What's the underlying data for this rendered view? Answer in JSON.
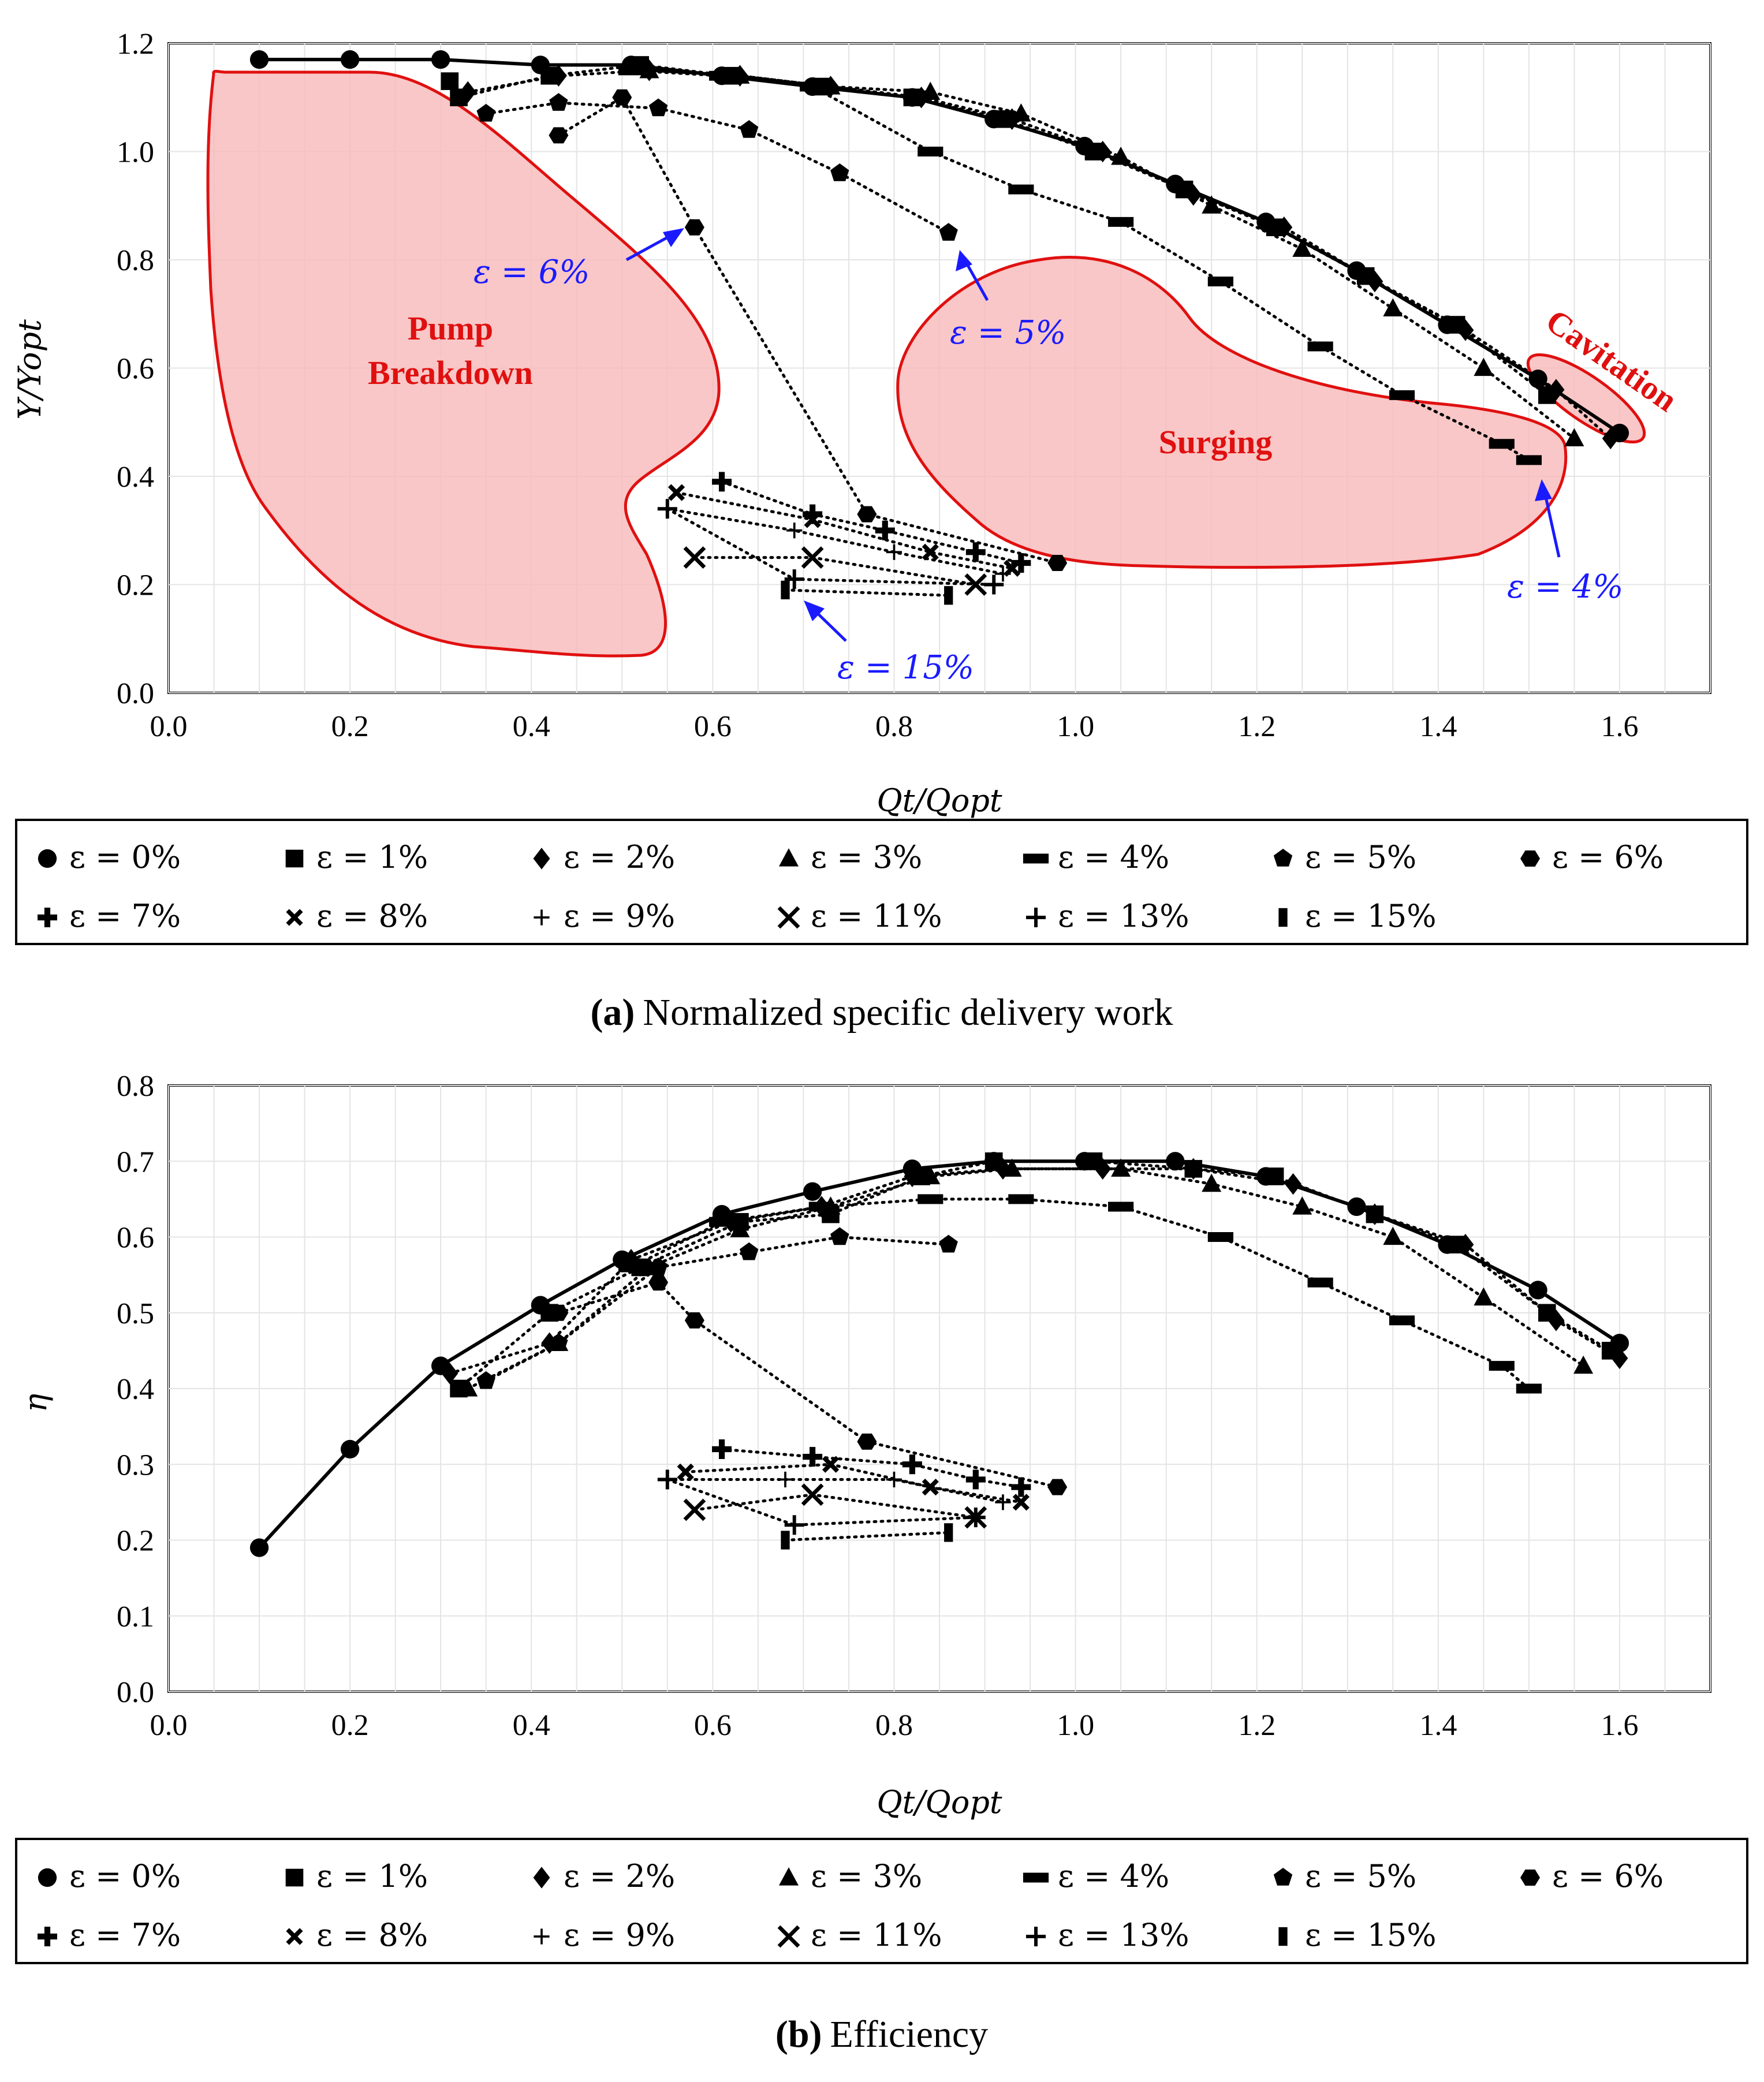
{
  "chart_data": [
    {
      "type": "scatter",
      "panel_id": "a",
      "caption_prefix": "(a)",
      "caption": "Normalized specific delivery work",
      "xlabel": "Qt/Qopt",
      "ylabel": "Y/Yopt",
      "xlim": [
        0.0,
        1.7
      ],
      "ylim": [
        0.0,
        1.2
      ],
      "xticks": [
        "0.0",
        "0.2",
        "0.4",
        "0.6",
        "0.8",
        "1.0",
        "1.2",
        "1.4",
        "1.6"
      ],
      "yticks": [
        "0.0",
        "0.2",
        "0.4",
        "0.6",
        "0.8",
        "1.0",
        "1.2"
      ],
      "grid": true,
      "regions": [
        {
          "name": "Pump Breakdown",
          "label_lines": [
            "Pump",
            "Breakdown"
          ]
        },
        {
          "name": "Surging",
          "label_lines": [
            "Surging"
          ]
        },
        {
          "name": "Cavitation",
          "label_lines": [
            "Cavitation"
          ]
        }
      ],
      "annotations": [
        "ε = 6%",
        "ε = 5%",
        "ε = 4%",
        "ε = 15%"
      ],
      "series": [
        {
          "name": "ε = 0%",
          "marker": "circle",
          "x": [
            0.1,
            0.2,
            0.3,
            0.41,
            0.51,
            0.61,
            0.71,
            0.82,
            0.91,
            1.01,
            1.11,
            1.21,
            1.31,
            1.41,
            1.51,
            1.6
          ],
          "y": [
            1.17,
            1.17,
            1.17,
            1.16,
            1.16,
            1.14,
            1.12,
            1.1,
            1.06,
            1.01,
            0.94,
            0.87,
            0.78,
            0.68,
            0.58,
            0.48
          ]
        },
        {
          "name": "ε = 1%",
          "marker": "square",
          "x": [
            0.31,
            0.32,
            0.42,
            0.52,
            0.62,
            0.72,
            0.82,
            0.92,
            1.02,
            1.12,
            1.22,
            1.32,
            1.42,
            1.52
          ],
          "y": [
            1.13,
            1.1,
            1.14,
            1.16,
            1.14,
            1.12,
            1.1,
            1.06,
            1.0,
            0.93,
            0.86,
            0.77,
            0.68,
            0.55
          ]
        },
        {
          "name": "ε = 2%",
          "marker": "diamond",
          "x": [
            0.33,
            0.43,
            0.53,
            0.63,
            0.73,
            0.83,
            0.93,
            1.03,
            1.13,
            1.23,
            1.33,
            1.43,
            1.53,
            1.59
          ],
          "y": [
            1.11,
            1.14,
            1.15,
            1.14,
            1.12,
            1.1,
            1.06,
            1.0,
            0.92,
            0.86,
            0.76,
            0.67,
            0.56,
            0.47
          ]
        },
        {
          "name": "ε = 3%",
          "marker": "triangle",
          "x": [
            0.53,
            0.63,
            0.73,
            0.84,
            0.94,
            1.05,
            1.15,
            1.25,
            1.35,
            1.45,
            1.55
          ],
          "y": [
            1.15,
            1.14,
            1.12,
            1.11,
            1.07,
            0.99,
            0.9,
            0.82,
            0.71,
            0.6,
            0.47
          ]
        },
        {
          "name": "ε = 4%",
          "marker": "dash",
          "x": [
            0.51,
            0.61,
            0.71,
            0.84,
            0.94,
            1.05,
            1.16,
            1.27,
            1.36,
            1.47,
            1.5
          ],
          "y": [
            1.15,
            1.14,
            1.12,
            1.0,
            0.93,
            0.87,
            0.76,
            0.64,
            0.55,
            0.46,
            0.43
          ]
        },
        {
          "name": "ε = 5%",
          "marker": "pentagon",
          "x": [
            0.35,
            0.43,
            0.54,
            0.64,
            0.74,
            0.86
          ],
          "y": [
            1.07,
            1.09,
            1.08,
            1.04,
            0.96,
            0.85
          ]
        },
        {
          "name": "ε = 6%",
          "marker": "hexagon",
          "x": [
            0.43,
            0.5,
            0.58,
            0.77,
            0.98
          ],
          "y": [
            1.03,
            1.1,
            0.86,
            0.33,
            0.24
          ]
        },
        {
          "name": "ε = 7%",
          "marker": "plus-bold",
          "x": [
            0.61,
            0.71,
            0.79,
            0.89,
            0.94
          ],
          "y": [
            0.39,
            0.33,
            0.3,
            0.26,
            0.24
          ]
        },
        {
          "name": "ε = 8%",
          "marker": "x-small",
          "x": [
            0.56,
            0.71,
            0.84,
            0.93
          ],
          "y": [
            0.37,
            0.32,
            0.26,
            0.23
          ]
        },
        {
          "name": "ε = 9%",
          "marker": "plus-thin",
          "x": [
            0.55,
            0.69,
            0.8,
            0.92
          ],
          "y": [
            0.34,
            0.3,
            0.26,
            0.22
          ]
        },
        {
          "name": "ε = 11%",
          "marker": "x-large",
          "x": [
            0.58,
            0.71,
            0.89
          ],
          "y": [
            0.25,
            0.25,
            0.2
          ]
        },
        {
          "name": "ε = 13%",
          "marker": "plus-medium",
          "x": [
            0.55,
            0.69,
            0.91
          ],
          "y": [
            0.34,
            0.21,
            0.2
          ]
        },
        {
          "name": "ε = 15%",
          "marker": "bar",
          "x": [
            0.68,
            0.86
          ],
          "y": [
            0.19,
            0.18
          ]
        }
      ]
    },
    {
      "type": "scatter",
      "panel_id": "b",
      "caption_prefix": "(b)",
      "caption": "Efficiency",
      "xlabel": "Qt/Qopt",
      "ylabel": "η",
      "xlim": [
        0.0,
        1.7
      ],
      "ylim": [
        0.0,
        0.8
      ],
      "xticks": [
        "0.0",
        "0.2",
        "0.4",
        "0.6",
        "0.8",
        "1.0",
        "1.2",
        "1.4",
        "1.6"
      ],
      "yticks": [
        "0.0",
        "0.1",
        "0.2",
        "0.3",
        "0.4",
        "0.5",
        "0.6",
        "0.7",
        "0.8"
      ],
      "grid": true,
      "series": [
        {
          "name": "ε = 0%",
          "marker": "circle",
          "x": [
            0.1,
            0.2,
            0.3,
            0.41,
            0.5,
            0.61,
            0.71,
            0.82,
            0.91,
            1.01,
            1.11,
            1.21,
            1.31,
            1.41,
            1.51,
            1.6
          ],
          "y": [
            0.19,
            0.32,
            0.43,
            0.51,
            0.57,
            0.63,
            0.66,
            0.69,
            0.7,
            0.7,
            0.7,
            0.68,
            0.64,
            0.59,
            0.53,
            0.46
          ]
        },
        {
          "name": "ε = 1%",
          "marker": "square",
          "x": [
            0.32,
            0.42,
            0.52,
            0.63,
            0.73,
            0.83,
            0.91,
            1.02,
            1.13,
            1.22,
            1.33,
            1.42,
            1.52,
            1.59
          ],
          "y": [
            0.4,
            0.5,
            0.56,
            0.62,
            0.63,
            0.68,
            0.7,
            0.7,
            0.69,
            0.68,
            0.63,
            0.59,
            0.5,
            0.45
          ]
        },
        {
          "name": "ε = 2%",
          "marker": "diamond",
          "x": [
            0.31,
            0.42,
            0.51,
            0.62,
            0.72,
            0.82,
            0.92,
            1.03,
            1.13,
            1.24,
            1.33,
            1.43,
            1.53,
            1.6
          ],
          "y": [
            0.42,
            0.46,
            0.57,
            0.62,
            0.64,
            0.68,
            0.69,
            0.69,
            0.69,
            0.67,
            0.63,
            0.59,
            0.49,
            0.44
          ]
        },
        {
          "name": "ε = 3%",
          "marker": "triangle",
          "x": [
            0.33,
            0.43,
            0.53,
            0.63,
            0.73,
            0.84,
            0.93,
            1.05,
            1.15,
            1.25,
            1.35,
            1.45,
            1.56
          ],
          "y": [
            0.4,
            0.46,
            0.56,
            0.61,
            0.64,
            0.68,
            0.69,
            0.69,
            0.67,
            0.64,
            0.6,
            0.52,
            0.43
          ]
        },
        {
          "name": "ε = 4%",
          "marker": "dash",
          "x": [
            0.51,
            0.61,
            0.72,
            0.84,
            0.94,
            1.05,
            1.16,
            1.27,
            1.36,
            1.47,
            1.5
          ],
          "y": [
            0.56,
            0.62,
            0.64,
            0.65,
            0.65,
            0.64,
            0.6,
            0.54,
            0.49,
            0.43,
            0.4
          ]
        },
        {
          "name": "ε = 5%",
          "marker": "pentagon",
          "x": [
            0.35,
            0.43,
            0.54,
            0.64,
            0.74,
            0.86
          ],
          "y": [
            0.41,
            0.46,
            0.56,
            0.58,
            0.6,
            0.59
          ]
        },
        {
          "name": "ε = 6%",
          "marker": "hexagon",
          "x": [
            0.43,
            0.54,
            0.58,
            0.77,
            0.98
          ],
          "y": [
            0.5,
            0.54,
            0.49,
            0.33,
            0.27
          ]
        },
        {
          "name": "ε = 7%",
          "marker": "plus-bold",
          "x": [
            0.61,
            0.71,
            0.82,
            0.89,
            0.94
          ],
          "y": [
            0.32,
            0.31,
            0.3,
            0.28,
            0.27
          ]
        },
        {
          "name": "ε = 8%",
          "marker": "x-small",
          "x": [
            0.57,
            0.73,
            0.84,
            0.94
          ],
          "y": [
            0.29,
            0.3,
            0.27,
            0.25
          ]
        },
        {
          "name": "ε = 9%",
          "marker": "plus-thin",
          "x": [
            0.55,
            0.68,
            0.8,
            0.92
          ],
          "y": [
            0.28,
            0.28,
            0.28,
            0.25
          ]
        },
        {
          "name": "ε = 11%",
          "marker": "x-large",
          "x": [
            0.58,
            0.71,
            0.89
          ],
          "y": [
            0.24,
            0.26,
            0.23
          ]
        },
        {
          "name": "ε = 13%",
          "marker": "plus-medium",
          "x": [
            0.55,
            0.69,
            0.89
          ],
          "y": [
            0.28,
            0.22,
            0.23
          ]
        },
        {
          "name": "ε = 15%",
          "marker": "bar",
          "x": [
            0.68,
            0.86
          ],
          "y": [
            0.2,
            0.21
          ]
        }
      ]
    }
  ]
}
